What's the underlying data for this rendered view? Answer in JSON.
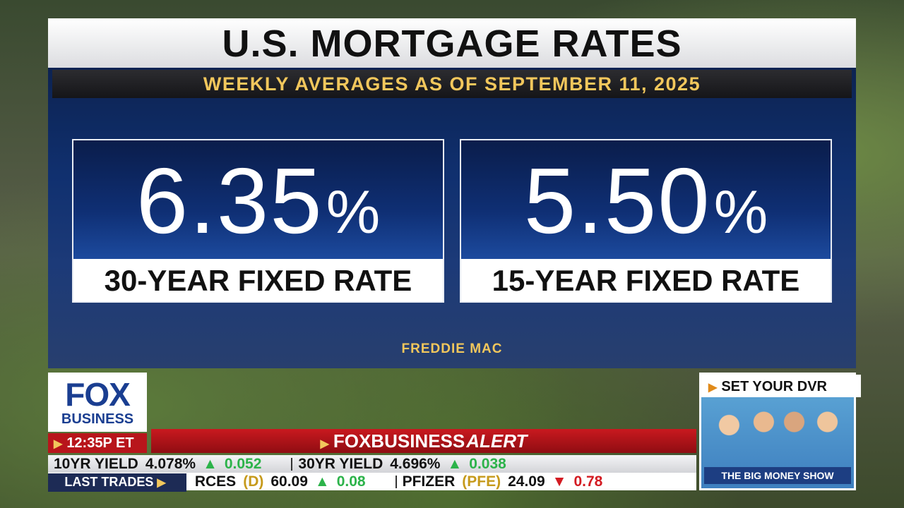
{
  "title": "U.S. MORTGAGE RATES",
  "subtitle": "WEEKLY AVERAGES AS OF SEPTEMBER 11, 2025",
  "cards": [
    {
      "rate": "6.35",
      "symbol": "%",
      "label": "30-YEAR FIXED RATE"
    },
    {
      "rate": "5.50",
      "symbol": "%",
      "label": "15-YEAR FIXED RATE"
    }
  ],
  "source": "FREDDIE MAC",
  "logo": {
    "line1": "FOX",
    "line2": "BUSINESS"
  },
  "time": "12:35P ET",
  "alert": {
    "brand": "FOXBUSINESS",
    "word": "ALERT"
  },
  "ticker": {
    "yields": [
      {
        "name": "10YR YIELD",
        "value": "4.078%",
        "change": "0.052",
        "direction": "up"
      },
      {
        "name": "30YR YIELD",
        "value": "4.696%",
        "change": "0.038",
        "direction": "up"
      }
    ],
    "label": "LAST TRADES",
    "trades": [
      {
        "name": "RCES",
        "symbol": "(D)",
        "value": "60.09",
        "change": "0.08",
        "direction": "up"
      },
      {
        "name": "PFIZER",
        "symbol": "(PFE)",
        "value": "24.09",
        "change": "0.78",
        "direction": "down"
      }
    ]
  },
  "promo": {
    "header": "SET YOUR DVR",
    "show": "THE BIG MONEY SHOW"
  }
}
